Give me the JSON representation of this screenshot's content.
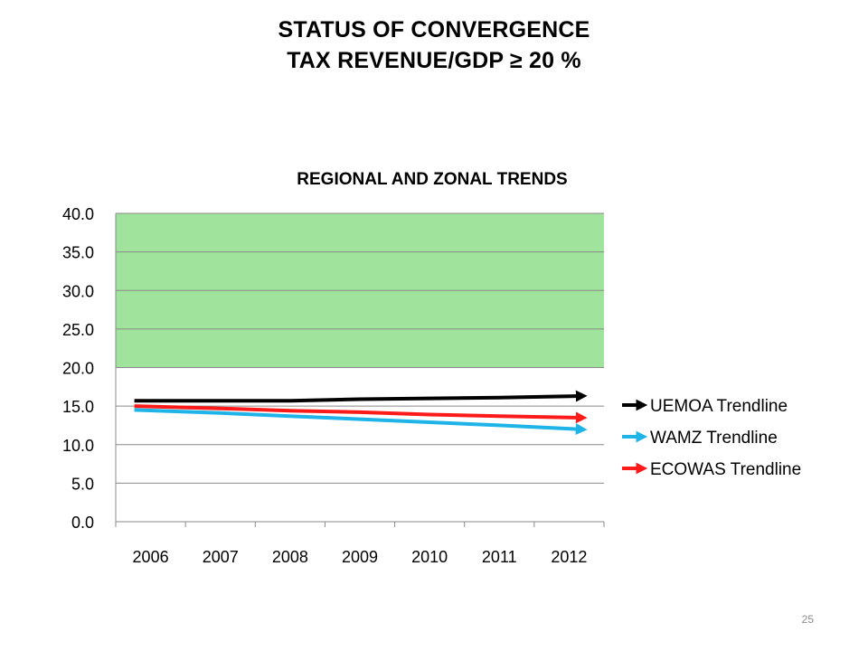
{
  "slide": {
    "title_line1": "STATUS OF CONVERGENCE",
    "title_line2": "TAX REVENUE/GDP ≥ 20 %",
    "page_number": "25"
  },
  "chart_data": {
    "type": "line",
    "title": "REGIONAL AND ZONAL TRENDS",
    "categories": [
      "2006",
      "2007",
      "2008",
      "2009",
      "2010",
      "2011",
      "2012"
    ],
    "ylim": [
      0,
      40
    ],
    "yticks": [
      "0.0",
      "5.0",
      "10.0",
      "15.0",
      "20.0",
      "25.0",
      "30.0",
      "35.0",
      "40.0"
    ],
    "grid": true,
    "target_zone": {
      "from": 20,
      "to": 40,
      "color": "#9fe39c"
    },
    "legend_position": "right",
    "series": [
      {
        "name": "UEMOA Trendline",
        "color": "#000000",
        "values": [
          15.7,
          15.7,
          15.7,
          15.9,
          16.0,
          16.1,
          16.3
        ]
      },
      {
        "name": "WAMZ Trendline",
        "color": "#1fb4e8",
        "values": [
          14.5,
          14.1,
          13.7,
          13.3,
          12.9,
          12.5,
          12.0
        ]
      },
      {
        "name": "ECOWAS Trendline",
        "color": "#ff1a1a",
        "values": [
          15.0,
          14.7,
          14.4,
          14.2,
          13.9,
          13.7,
          13.5
        ]
      }
    ]
  }
}
